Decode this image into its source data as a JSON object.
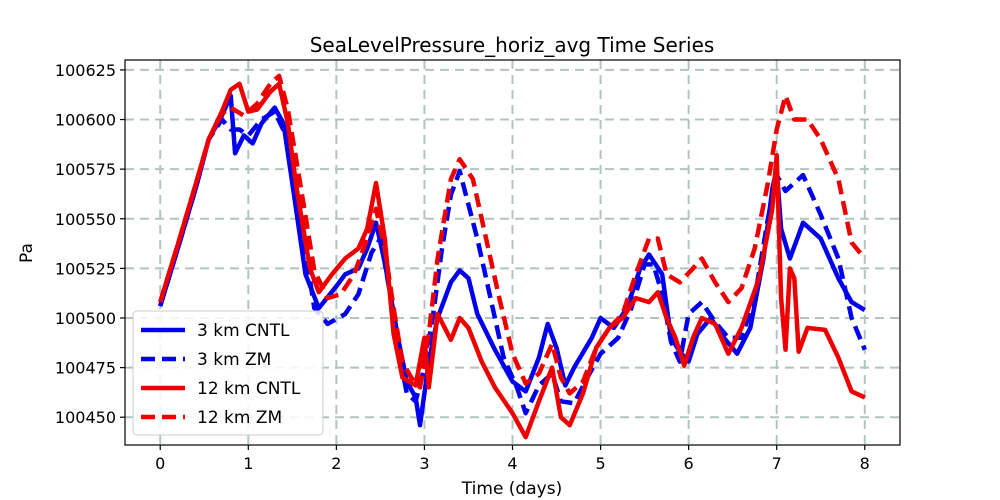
{
  "chart_data": {
    "type": "line",
    "title": "SeaLevelPressure_horiz_avg Time Series",
    "xlabel": "Time (days)",
    "ylabel": "Pa",
    "xlim": [
      -0.4,
      8.4
    ],
    "ylim": [
      100436,
      100630
    ],
    "xticks": [
      "0",
      "1",
      "2",
      "3",
      "4",
      "5",
      "6",
      "7",
      "8"
    ],
    "yticks": [
      "100450",
      "100475",
      "100500",
      "100525",
      "100550",
      "100575",
      "100600",
      "100625"
    ],
    "grid": true,
    "legend_position": "lower-left",
    "series": [
      {
        "name": "3 km CNTL",
        "color": "#0000ee",
        "style": "solid",
        "points": [
          [
            0,
            100506
          ],
          [
            0.2,
            100535
          ],
          [
            0.4,
            100565
          ],
          [
            0.55,
            100590
          ],
          [
            0.7,
            100602
          ],
          [
            0.8,
            100612
          ],
          [
            0.85,
            100583
          ],
          [
            0.95,
            100592
          ],
          [
            1.05,
            100588
          ],
          [
            1.15,
            100598
          ],
          [
            1.3,
            100606
          ],
          [
            1.4,
            100598
          ],
          [
            1.5,
            100568
          ],
          [
            1.65,
            100522
          ],
          [
            1.8,
            100505
          ],
          [
            2.0,
            100516
          ],
          [
            2.1,
            100522
          ],
          [
            2.25,
            100525
          ],
          [
            2.35,
            100535
          ],
          [
            2.45,
            100548
          ],
          [
            2.55,
            100528
          ],
          [
            2.7,
            100490
          ],
          [
            2.8,
            100468
          ],
          [
            2.9,
            100460
          ],
          [
            2.95,
            100446
          ],
          [
            3.05,
            100478
          ],
          [
            3.15,
            100500
          ],
          [
            3.3,
            100518
          ],
          [
            3.4,
            100524
          ],
          [
            3.5,
            100520
          ],
          [
            3.6,
            100502
          ],
          [
            3.8,
            100484
          ],
          [
            4.0,
            100468
          ],
          [
            4.15,
            100463
          ],
          [
            4.3,
            100480
          ],
          [
            4.4,
            100497
          ],
          [
            4.5,
            100485
          ],
          [
            4.6,
            100466
          ],
          [
            4.7,
            100475
          ],
          [
            4.9,
            100490
          ],
          [
            5.0,
            100500
          ],
          [
            5.15,
            100495
          ],
          [
            5.3,
            100505
          ],
          [
            5.45,
            100525
          ],
          [
            5.55,
            100532
          ],
          [
            5.7,
            100522
          ],
          [
            5.8,
            100490
          ],
          [
            5.9,
            100483
          ],
          [
            6.0,
            100478
          ],
          [
            6.1,
            100492
          ],
          [
            6.25,
            100500
          ],
          [
            6.4,
            100490
          ],
          [
            6.55,
            100482
          ],
          [
            6.7,
            100495
          ],
          [
            6.85,
            100530
          ],
          [
            6.95,
            100565
          ],
          [
            7.0,
            100575
          ],
          [
            7.05,
            100545
          ],
          [
            7.15,
            100530
          ],
          [
            7.3,
            100548
          ],
          [
            7.5,
            100540
          ],
          [
            7.7,
            100520
          ],
          [
            7.85,
            100508
          ],
          [
            8.0,
            100504
          ]
        ]
      },
      {
        "name": "3 km ZM",
        "color": "#0000ee",
        "style": "dashed",
        "points": [
          [
            0,
            100506
          ],
          [
            0.2,
            100535
          ],
          [
            0.4,
            100565
          ],
          [
            0.55,
            100590
          ],
          [
            0.7,
            100600
          ],
          [
            0.8,
            100595
          ],
          [
            0.9,
            100595
          ],
          [
            1.0,
            100592
          ],
          [
            1.15,
            100600
          ],
          [
            1.3,
            100604
          ],
          [
            1.45,
            100590
          ],
          [
            1.6,
            100548
          ],
          [
            1.75,
            100505
          ],
          [
            1.9,
            100497
          ],
          [
            2.1,
            100502
          ],
          [
            2.25,
            100512
          ],
          [
            2.4,
            100533
          ],
          [
            2.5,
            100540
          ],
          [
            2.6,
            100515
          ],
          [
            2.7,
            100485
          ],
          [
            2.8,
            100462
          ],
          [
            2.9,
            100458
          ],
          [
            3.0,
            100475
          ],
          [
            3.1,
            100502
          ],
          [
            3.2,
            100535
          ],
          [
            3.3,
            100562
          ],
          [
            3.4,
            100574
          ],
          [
            3.5,
            100557
          ],
          [
            3.6,
            100540
          ],
          [
            3.75,
            100510
          ],
          [
            3.9,
            100480
          ],
          [
            4.05,
            100465
          ],
          [
            4.15,
            100452
          ],
          [
            4.3,
            100466
          ],
          [
            4.45,
            100472
          ],
          [
            4.55,
            100458
          ],
          [
            4.7,
            100457
          ],
          [
            4.85,
            100470
          ],
          [
            5.0,
            100482
          ],
          [
            5.2,
            100490
          ],
          [
            5.35,
            100505
          ],
          [
            5.5,
            100527
          ],
          [
            5.6,
            100527
          ],
          [
            5.7,
            100512
          ],
          [
            5.8,
            100488
          ],
          [
            5.9,
            100478
          ],
          [
            6.0,
            100502
          ],
          [
            6.15,
            100508
          ],
          [
            6.3,
            100498
          ],
          [
            6.45,
            100490
          ],
          [
            6.6,
            100490
          ],
          [
            6.75,
            100510
          ],
          [
            6.9,
            100550
          ],
          [
            7.0,
            100572
          ],
          [
            7.1,
            100564
          ],
          [
            7.3,
            100572
          ],
          [
            7.5,
            100552
          ],
          [
            7.7,
            100530
          ],
          [
            7.85,
            100500
          ],
          [
            8.0,
            100484
          ]
        ]
      },
      {
        "name": "12 km CNTL",
        "color": "#ee0000",
        "style": "solid",
        "points": [
          [
            0,
            100508
          ],
          [
            0.2,
            100537
          ],
          [
            0.4,
            100567
          ],
          [
            0.55,
            100590
          ],
          [
            0.7,
            100604
          ],
          [
            0.8,
            100615
          ],
          [
            0.9,
            100618
          ],
          [
            1.0,
            100604
          ],
          [
            1.1,
            100605
          ],
          [
            1.25,
            100614
          ],
          [
            1.35,
            100618
          ],
          [
            1.45,
            100598
          ],
          [
            1.55,
            100565
          ],
          [
            1.7,
            100525
          ],
          [
            1.8,
            100513
          ],
          [
            1.95,
            100522
          ],
          [
            2.1,
            100530
          ],
          [
            2.25,
            100535
          ],
          [
            2.35,
            100545
          ],
          [
            2.45,
            100568
          ],
          [
            2.55,
            100540
          ],
          [
            2.65,
            100492
          ],
          [
            2.75,
            100470
          ],
          [
            2.9,
            100466
          ],
          [
            3.0,
            100490
          ],
          [
            3.05,
            100465
          ],
          [
            3.15,
            100502
          ],
          [
            3.3,
            100489
          ],
          [
            3.4,
            100500
          ],
          [
            3.5,
            100495
          ],
          [
            3.65,
            100478
          ],
          [
            3.8,
            100465
          ],
          [
            4.0,
            100452
          ],
          [
            4.15,
            100440
          ],
          [
            4.3,
            100458
          ],
          [
            4.45,
            100475
          ],
          [
            4.55,
            100450
          ],
          [
            4.65,
            100446
          ],
          [
            4.8,
            100462
          ],
          [
            4.95,
            100485
          ],
          [
            5.1,
            100495
          ],
          [
            5.25,
            100500
          ],
          [
            5.4,
            100510
          ],
          [
            5.55,
            100508
          ],
          [
            5.65,
            100513
          ],
          [
            5.75,
            100500
          ],
          [
            5.85,
            100490
          ],
          [
            5.95,
            100476
          ],
          [
            6.05,
            100490
          ],
          [
            6.15,
            100500
          ],
          [
            6.3,
            100497
          ],
          [
            6.45,
            100482
          ],
          [
            6.6,
            100495
          ],
          [
            6.8,
            100520
          ],
          [
            6.95,
            100555
          ],
          [
            7.0,
            100582
          ],
          [
            7.05,
            100510
          ],
          [
            7.1,
            100484
          ],
          [
            7.15,
            100525
          ],
          [
            7.2,
            100520
          ],
          [
            7.25,
            100483
          ],
          [
            7.35,
            100495
          ],
          [
            7.55,
            100494
          ],
          [
            7.7,
            100480
          ],
          [
            7.85,
            100463
          ],
          [
            8.0,
            100460
          ]
        ]
      },
      {
        "name": "12 km ZM",
        "color": "#ee0000",
        "style": "dashed",
        "points": [
          [
            0,
            100508
          ],
          [
            0.2,
            100537
          ],
          [
            0.4,
            100567
          ],
          [
            0.55,
            100590
          ],
          [
            0.7,
            100603
          ],
          [
            0.8,
            100606
          ],
          [
            0.95,
            100602
          ],
          [
            1.1,
            100608
          ],
          [
            1.25,
            100618
          ],
          [
            1.35,
            100622
          ],
          [
            1.45,
            100605
          ],
          [
            1.6,
            100565
          ],
          [
            1.75,
            100524
          ],
          [
            1.9,
            100510
          ],
          [
            2.05,
            100512
          ],
          [
            2.2,
            100522
          ],
          [
            2.35,
            100540
          ],
          [
            2.45,
            100555
          ],
          [
            2.55,
            100535
          ],
          [
            2.65,
            100505
          ],
          [
            2.75,
            100478
          ],
          [
            2.85,
            100470
          ],
          [
            2.95,
            100465
          ],
          [
            3.05,
            100492
          ],
          [
            3.15,
            100530
          ],
          [
            3.3,
            100570
          ],
          [
            3.4,
            100580
          ],
          [
            3.55,
            100570
          ],
          [
            3.7,
            100540
          ],
          [
            3.85,
            100510
          ],
          [
            4.0,
            100482
          ],
          [
            4.15,
            100467
          ],
          [
            4.3,
            100472
          ],
          [
            4.45,
            100487
          ],
          [
            4.55,
            100470
          ],
          [
            4.65,
            100462
          ],
          [
            4.8,
            100468
          ],
          [
            4.95,
            100485
          ],
          [
            5.1,
            100495
          ],
          [
            5.25,
            100502
          ],
          [
            5.4,
            100522
          ],
          [
            5.55,
            100540
          ],
          [
            5.65,
            100540
          ],
          [
            5.75,
            100522
          ],
          [
            5.9,
            100518
          ],
          [
            6.05,
            100525
          ],
          [
            6.15,
            100530
          ],
          [
            6.3,
            100518
          ],
          [
            6.45,
            100508
          ],
          [
            6.6,
            100515
          ],
          [
            6.75,
            100535
          ],
          [
            6.9,
            100568
          ],
          [
            7.0,
            100595
          ],
          [
            7.1,
            100612
          ],
          [
            7.2,
            100600
          ],
          [
            7.35,
            100600
          ],
          [
            7.5,
            100590
          ],
          [
            7.7,
            100570
          ],
          [
            7.85,
            100538
          ],
          [
            8.0,
            100530
          ]
        ]
      }
    ]
  }
}
